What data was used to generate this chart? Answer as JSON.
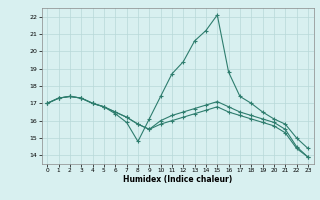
{
  "hours": [
    0,
    1,
    2,
    3,
    4,
    5,
    6,
    7,
    8,
    9,
    10,
    11,
    12,
    13,
    14,
    15,
    16,
    17,
    18,
    19,
    20,
    21,
    22,
    23
  ],
  "line1": [
    17.0,
    17.3,
    17.4,
    17.3,
    17.0,
    16.8,
    16.4,
    15.9,
    14.8,
    16.1,
    17.4,
    18.7,
    19.4,
    20.6,
    21.2,
    22.1,
    18.8,
    17.4,
    17.0,
    16.5,
    16.1,
    15.8,
    15.0,
    14.4
  ],
  "line2": [
    17.0,
    17.3,
    17.4,
    17.3,
    17.0,
    16.8,
    16.5,
    16.2,
    15.8,
    15.5,
    16.0,
    16.3,
    16.5,
    16.7,
    16.9,
    17.1,
    16.8,
    16.5,
    16.3,
    16.1,
    15.9,
    15.5,
    14.5,
    13.9
  ],
  "line3": [
    17.0,
    17.3,
    17.4,
    17.3,
    17.0,
    16.8,
    16.5,
    16.2,
    15.8,
    15.5,
    15.8,
    16.0,
    16.2,
    16.4,
    16.6,
    16.8,
    16.5,
    16.3,
    16.1,
    15.9,
    15.7,
    15.3,
    14.4,
    13.9
  ],
  "line_color": "#2e7d6e",
  "bg_color": "#d8f0f0",
  "grid_color": "#b8d8d8",
  "xlabel": "Humidex (Indice chaleur)",
  "ylim": [
    13.5,
    22.5
  ],
  "xlim": [
    -0.5,
    23.5
  ],
  "yticks": [
    14,
    15,
    16,
    17,
    18,
    19,
    20,
    21,
    22
  ],
  "xticks": [
    0,
    1,
    2,
    3,
    4,
    5,
    6,
    7,
    8,
    9,
    10,
    11,
    12,
    13,
    14,
    15,
    16,
    17,
    18,
    19,
    20,
    21,
    22,
    23
  ]
}
